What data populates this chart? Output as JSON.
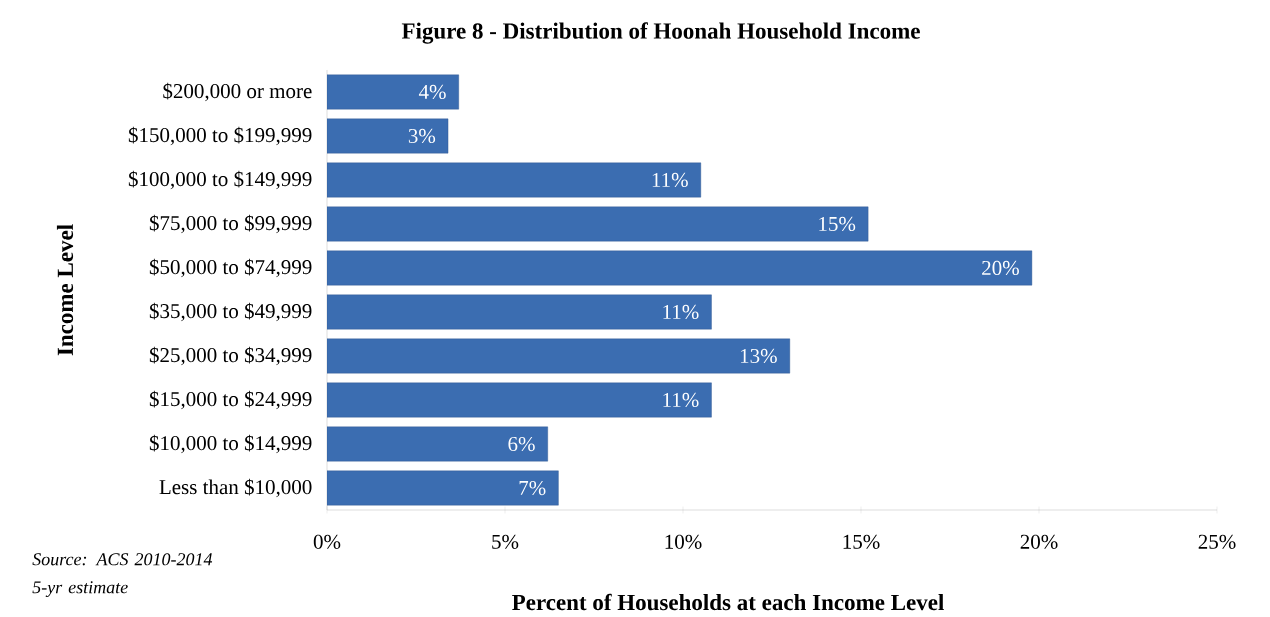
{
  "chart_data": {
    "type": "bar",
    "orientation": "horizontal",
    "title": "Figure 8 - Distribution of Hoonah Household Income",
    "xlabel": "Percent of Households at each Income Level",
    "ylabel": "Income Level",
    "categories": [
      "$200,000 or more",
      "$150,000 to $199,999",
      "$100,000 to $149,999",
      "$75,000 to $99,999",
      "$50,000 to $74,999",
      "$35,000 to $49,999",
      "$25,000 to $34,999",
      "$15,000 to $24,999",
      "$10,000 to $14,999",
      "Less than $10,000"
    ],
    "values": [
      3.7,
      3.4,
      10.5,
      15.2,
      19.8,
      10.8,
      13.0,
      10.8,
      6.2,
      6.5
    ],
    "value_labels": [
      "4%",
      "3%",
      "11%",
      "15%",
      "20%",
      "11%",
      "13%",
      "11%",
      "6%",
      "7%"
    ],
    "color": "#3b6db1",
    "xlim": [
      0,
      25
    ],
    "xticks": [
      {
        "value": 0,
        "label": "0%"
      },
      {
        "value": 5,
        "label": "5%"
      },
      {
        "value": 10,
        "label": "10%"
      },
      {
        "value": 15,
        "label": "15%"
      },
      {
        "value": 20,
        "label": "20%"
      },
      {
        "value": 25,
        "label": "25%"
      }
    ],
    "annotations": [
      "Source: ACS 2010-2014 5-yr estimate"
    ]
  }
}
